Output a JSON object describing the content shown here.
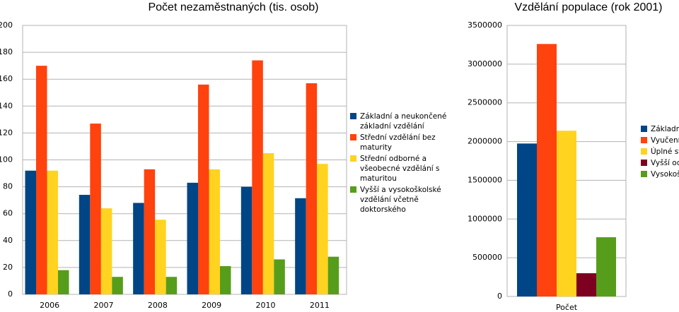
{
  "chart_data": [
    {
      "type": "bar",
      "title": "Počet nezaměstnaných (tis. osob)",
      "categories": [
        "2006",
        "2007",
        "2008",
        "2009",
        "2010",
        "2011"
      ],
      "series": [
        {
          "name": "Základní a neukončené základní vzdělání",
          "color": "#004586",
          "values": [
            92,
            74,
            68,
            83,
            80,
            71.5
          ]
        },
        {
          "name": "Střední vzdělání bez maturity",
          "color": "#ff420e",
          "values": [
            170,
            127,
            93,
            156,
            174,
            157
          ]
        },
        {
          "name": "Střední odborné a všeobecné vzdělání s maturitou",
          "color": "#ffd320",
          "values": [
            92,
            64,
            55.5,
            93,
            105,
            97
          ]
        },
        {
          "name": "Vyšší a vysokoškolské vzdělání včetně doktorského",
          "color": "#579d1c",
          "values": [
            18,
            13,
            13,
            21,
            26,
            28
          ]
        }
      ],
      "ylim": [
        0,
        200
      ],
      "yticks": [
        0,
        20,
        40,
        60,
        80,
        100,
        120,
        140,
        160,
        180,
        200
      ],
      "grid": true,
      "legend": "right"
    },
    {
      "type": "bar",
      "title": "Vzdělání populace (rok 2001)",
      "categories": [
        "Počet"
      ],
      "series": [
        {
          "name": "Základní",
          "color": "#004586",
          "values": [
            1975000
          ]
        },
        {
          "name": "Vyučení",
          "color": "#ff420e",
          "values": [
            3260000
          ]
        },
        {
          "name": "Úplné st",
          "color": "#ffd320",
          "values": [
            2140000
          ]
        },
        {
          "name": "Vyšší od",
          "color": "#7e0021",
          "values": [
            300000
          ]
        },
        {
          "name": "Vysokoš",
          "color": "#579d1c",
          "values": [
            765000
          ]
        }
      ],
      "ylim": [
        0,
        3500000
      ],
      "yticks": [
        0,
        500000,
        1000000,
        1500000,
        2000000,
        2500000,
        3000000,
        3500000
      ],
      "grid": true,
      "legend": "right"
    }
  ]
}
